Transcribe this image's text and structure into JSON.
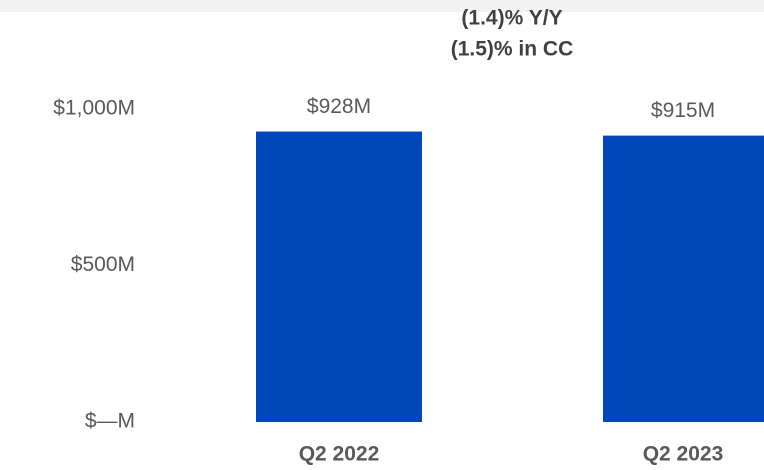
{
  "chart_data": {
    "type": "bar",
    "annotations": [
      "(1.4)% Y/Y",
      "(1.5)% in CC"
    ],
    "categories": [
      "Q2 2022",
      "Q2 2023"
    ],
    "values": [
      928,
      915
    ],
    "value_labels": [
      "$928M",
      "$915M"
    ],
    "color": "#0047bb",
    "ylim": [
      0,
      1000
    ],
    "yticks": [
      {
        "value": 0,
        "label": "$—M"
      },
      {
        "value": 500,
        "label": "$500M"
      },
      {
        "value": 1000,
        "label": "$1,000M"
      }
    ],
    "grid": false
  }
}
